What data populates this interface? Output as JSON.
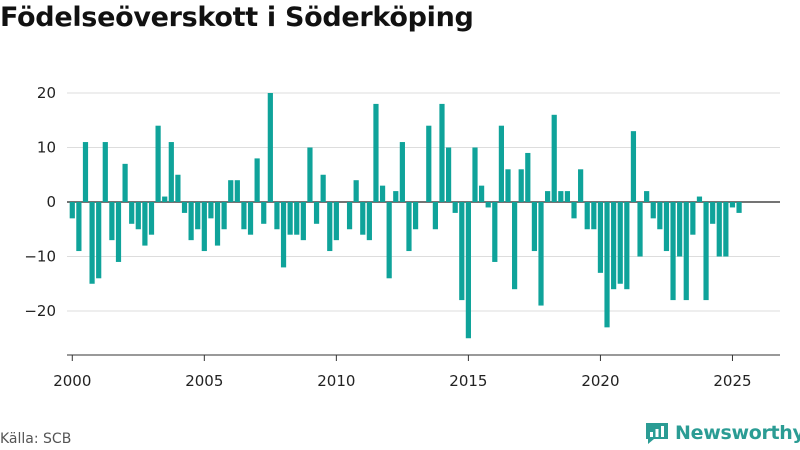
{
  "chart_data": {
    "type": "bar",
    "title": "Födelseöverskott i Söderköping",
    "source": "Källa: SCB",
    "brand": "Newsworthy",
    "color": "#0fa39a",
    "ylim": [
      -30,
      25
    ],
    "yticks": [
      20,
      10,
      0,
      -10,
      -20
    ],
    "ytick_labels": [
      "20",
      "10",
      "0",
      "−10",
      "−20"
    ],
    "xlim": [
      1999.8,
      2026.8
    ],
    "xticks": [
      2000,
      2005,
      2010,
      2015,
      2020,
      2025
    ],
    "grid": true,
    "start_year": 2000,
    "quarters_per_year": 4,
    "values": [
      -3,
      -9,
      11,
      -15,
      -14,
      11,
      -7,
      -11,
      7,
      -4,
      -5,
      -8,
      -6,
      14,
      1,
      11,
      5,
      -2,
      -7,
      -5,
      -9,
      -3,
      -8,
      -5,
      4,
      4,
      -5,
      -6,
      8,
      -4,
      20,
      -5,
      -12,
      -6,
      -6,
      -7,
      10,
      -4,
      5,
      -9,
      -7,
      0,
      -5,
      4,
      -6,
      -7,
      18,
      3,
      -14,
      2,
      11,
      -9,
      -5,
      0,
      14,
      -5,
      18,
      10,
      -2,
      -18,
      -25,
      10,
      3,
      -1,
      -11,
      14,
      6,
      -16,
      6,
      9,
      -9,
      -19,
      2,
      16,
      2,
      2,
      -3,
      6,
      -5,
      -5,
      -13,
      -23,
      -16,
      -15,
      -16,
      13,
      -10,
      2,
      -3,
      -5,
      -9,
      -18,
      -10,
      -18,
      -6,
      1,
      -18,
      -4,
      -10,
      -10,
      -1,
      -2
    ]
  }
}
